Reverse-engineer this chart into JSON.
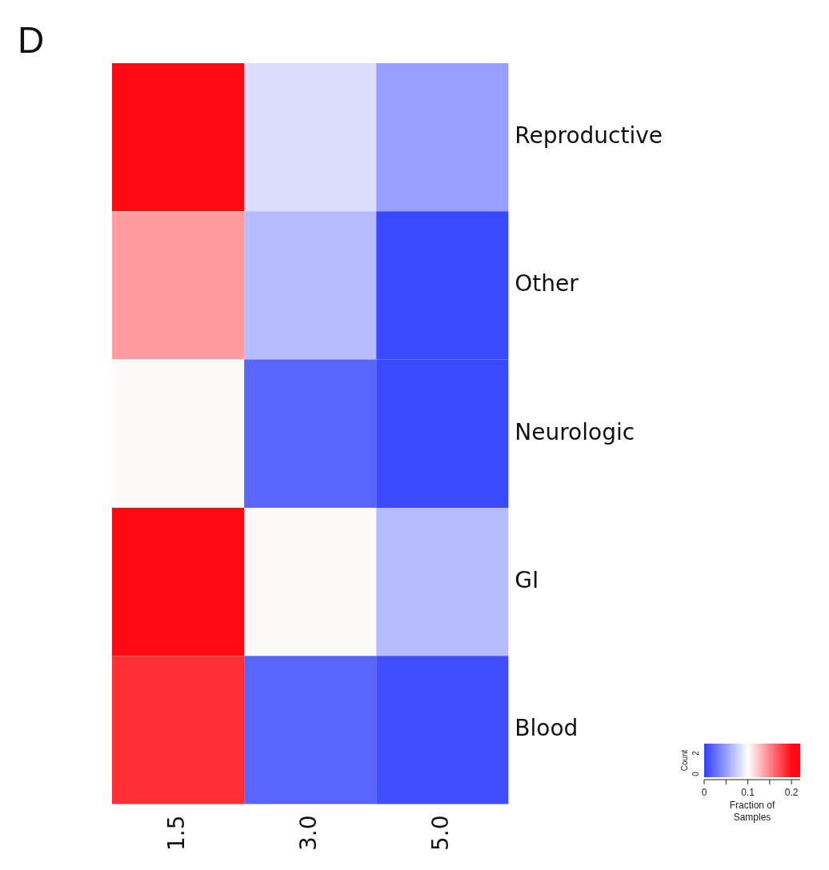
{
  "chart_data": {
    "type": "heatmap",
    "title": "D",
    "categories": [
      "1.5",
      "3.0",
      "5.0"
    ],
    "y_categories": [
      "Reproductive",
      "Other",
      "Neurologic",
      "GI",
      "Blood"
    ],
    "cells": [
      [
        0.2,
        0.083,
        0.05
      ],
      [
        0.14,
        0.065,
        0.005
      ],
      [
        0.102,
        0.02,
        0.005
      ],
      [
        0.2,
        0.102,
        0.065
      ],
      [
        0.185,
        0.02,
        0.008
      ]
    ],
    "clim": [
      0,
      0.22
    ],
    "cticks": [
      0,
      {
        "value": 0.05,
        "label": null
      },
      0.1,
      {
        "value": 0.15,
        "label": null
      },
      0.2
    ],
    "clabel": "Fraction of Samples",
    "annotations": [
      "Count",
      "0",
      "2"
    ]
  }
}
